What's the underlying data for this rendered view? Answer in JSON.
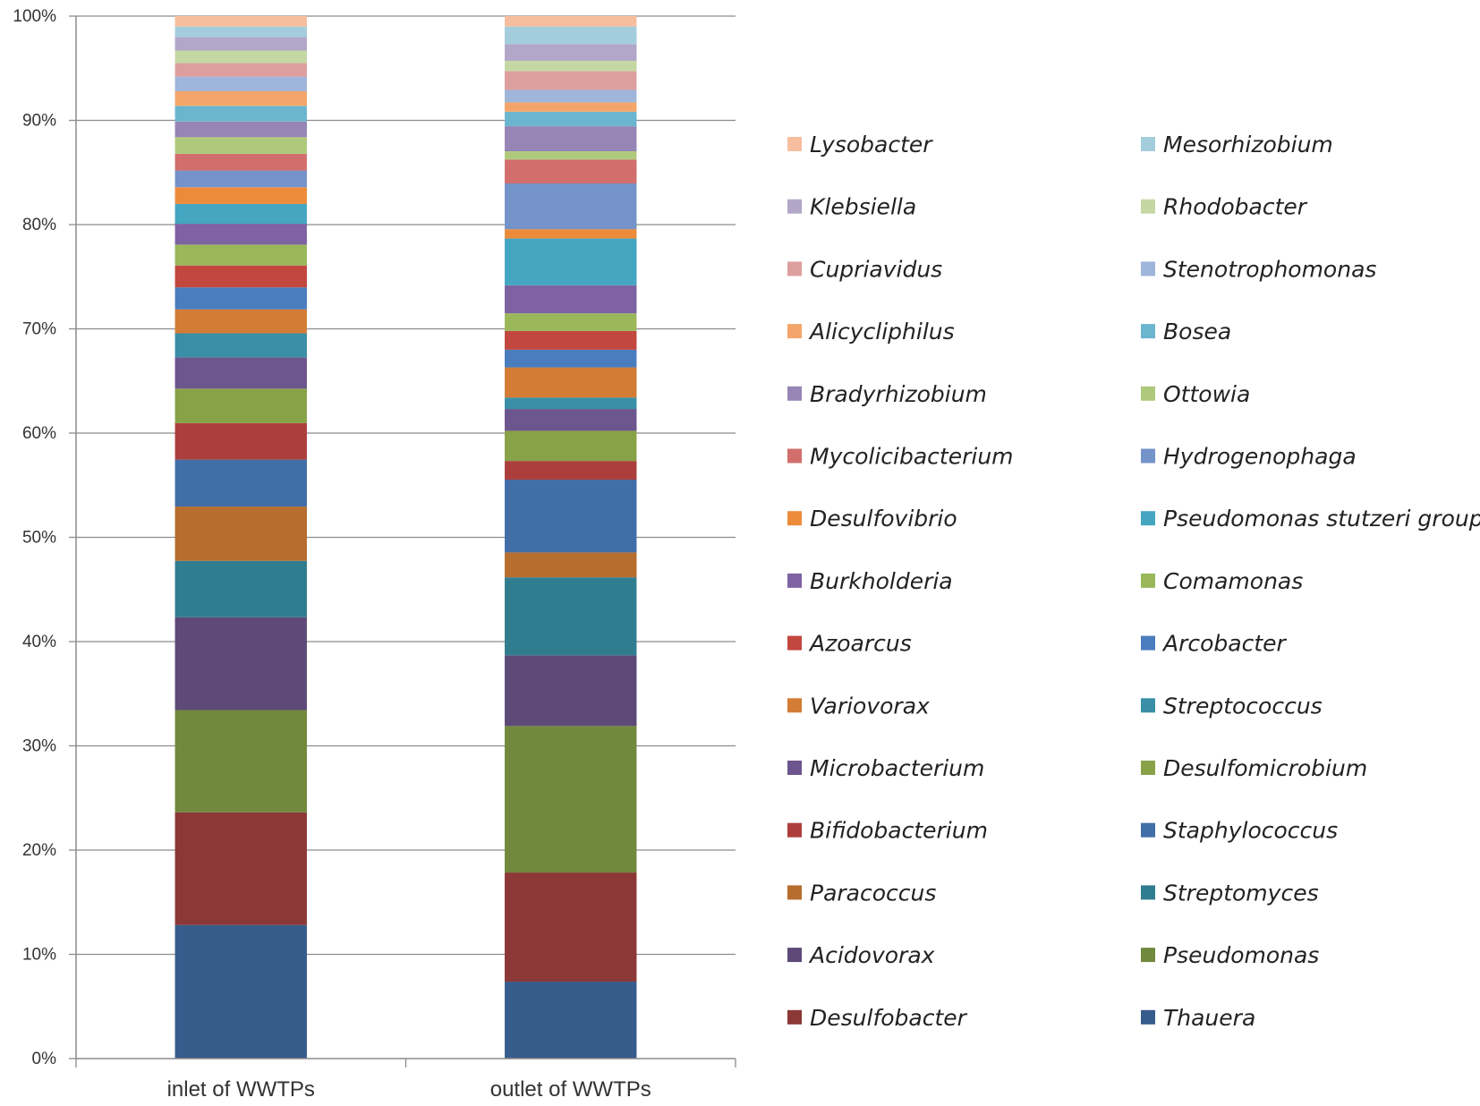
{
  "chart_data": {
    "type": "bar",
    "stacked": true,
    "percent": true,
    "title": "",
    "xlabel": "",
    "ylabel": "",
    "ylim": [
      0,
      100
    ],
    "yticks": [
      "0%",
      "10%",
      "20%",
      "30%",
      "40%",
      "50%",
      "60%",
      "70%",
      "80%",
      "90%",
      "100%"
    ],
    "grid": true,
    "legend_position": "right",
    "categories": [
      "inlet of WWTPs",
      "outlet of WWTPs"
    ],
    "series": [
      {
        "name": "Thauera",
        "color": "#365C8C",
        "values": [
          12.8,
          7.4
        ]
      },
      {
        "name": "Desulfobacter",
        "color": "#8B3836",
        "values": [
          10.8,
          10.5
        ]
      },
      {
        "name": "Pseudomonas",
        "color": "#71893D",
        "values": [
          9.8,
          14.1
        ]
      },
      {
        "name": "Acidovorax",
        "color": "#5D4A78",
        "values": [
          8.9,
          6.8
        ]
      },
      {
        "name": "Streptomyces",
        "color": "#317D90",
        "values": [
          5.4,
          7.5
        ]
      },
      {
        "name": "Paracoccus",
        "color": "#B66D2E",
        "values": [
          5.2,
          2.4
        ]
      },
      {
        "name": "Staphylococcus",
        "color": "#426EA8",
        "values": [
          4.5,
          7.0
        ]
      },
      {
        "name": "Bifidobacterium",
        "color": "#AC3F3C",
        "values": [
          3.5,
          1.8
        ]
      },
      {
        "name": "Desulfomicrobium",
        "color": "#88A248",
        "values": [
          3.3,
          2.9
        ]
      },
      {
        "name": "Microbacterium",
        "color": "#6D558D",
        "values": [
          3.0,
          2.1
        ]
      },
      {
        "name": "Streptococcus",
        "color": "#3A8FA6",
        "values": [
          2.3,
          1.1
        ]
      },
      {
        "name": "Variovorax",
        "color": "#D27C35",
        "values": [
          2.3,
          2.9
        ]
      },
      {
        "name": "Arcobacter",
        "color": "#4A7DBE",
        "values": [
          2.1,
          1.7
        ]
      },
      {
        "name": "Azoarcus",
        "color": "#C1473F",
        "values": [
          2.1,
          1.8
        ]
      },
      {
        "name": "Comamonas",
        "color": "#9AB75A",
        "values": [
          2.0,
          1.7
        ]
      },
      {
        "name": "Burkholderia",
        "color": "#7E62A1",
        "values": [
          2.0,
          2.7
        ]
      },
      {
        "name": "Pseudomonas stutzeri group",
        "color": "#44A6C1",
        "values": [
          1.9,
          4.5
        ]
      },
      {
        "name": "Desulfovibrio",
        "color": "#EC8C3B",
        "values": [
          1.6,
          0.9
        ]
      },
      {
        "name": "Hydrogenophaga",
        "color": "#7493C8",
        "values": [
          1.6,
          4.4
        ]
      },
      {
        "name": "Mycolicibacterium",
        "color": "#D26E6C",
        "values": [
          1.6,
          2.3
        ]
      },
      {
        "name": "Ottowia",
        "color": "#AFC97C",
        "values": [
          1.6,
          0.8
        ]
      },
      {
        "name": "Bradyrhizobium",
        "color": "#9685B5",
        "values": [
          1.5,
          2.4
        ]
      },
      {
        "name": "Bosea",
        "color": "#6CB5CF",
        "values": [
          1.5,
          1.4
        ]
      },
      {
        "name": "Alicycliphilus",
        "color": "#F4A66A",
        "values": [
          1.4,
          0.9
        ]
      },
      {
        "name": "Stenotrophomonas",
        "color": "#9FB5D9",
        "values": [
          1.4,
          1.2
        ]
      },
      {
        "name": "Cupriavidus",
        "color": "#DD9F9E",
        "values": [
          1.3,
          1.8
        ]
      },
      {
        "name": "Rhodobacter",
        "color": "#C5D8A4",
        "values": [
          1.2,
          1.0
        ]
      },
      {
        "name": "Klebsiella",
        "color": "#B2A7C8",
        "values": [
          1.3,
          1.6
        ]
      },
      {
        "name": "Mesorhizobium",
        "color": "#A3CDDC",
        "values": [
          1.0,
          1.7
        ]
      },
      {
        "name": "Lysobacter",
        "color": "#F6BE9D",
        "values": [
          1.0,
          1.0
        ]
      }
    ]
  }
}
